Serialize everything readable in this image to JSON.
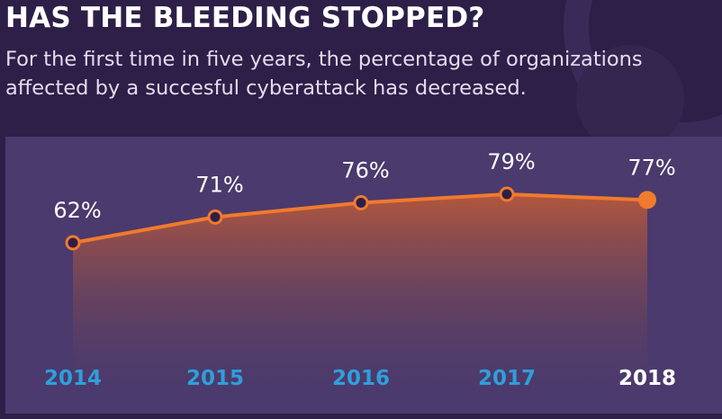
{
  "title": "HAS THE BLEEDING STOPPED?",
  "subtitle": "For the first time in five years, the percentage of organizations affected by a succesful cyberattack has decreased.",
  "colors": {
    "background": "#2e1f48",
    "panel": "#4a3a6d",
    "line": "#f07a2e",
    "year_label": "#2f9fdc",
    "year_label_current": "#ffffff"
  },
  "chart_data": {
    "type": "area",
    "categories": [
      "2014",
      "2015",
      "2016",
      "2017",
      "2018"
    ],
    "values": [
      62,
      71,
      76,
      79,
      77
    ],
    "value_labels": [
      "62%",
      "71%",
      "76%",
      "79%",
      "77%"
    ],
    "highlight_index": 4,
    "title": "",
    "xlabel": "",
    "ylabel": "",
    "grid": false,
    "legend": "none"
  }
}
